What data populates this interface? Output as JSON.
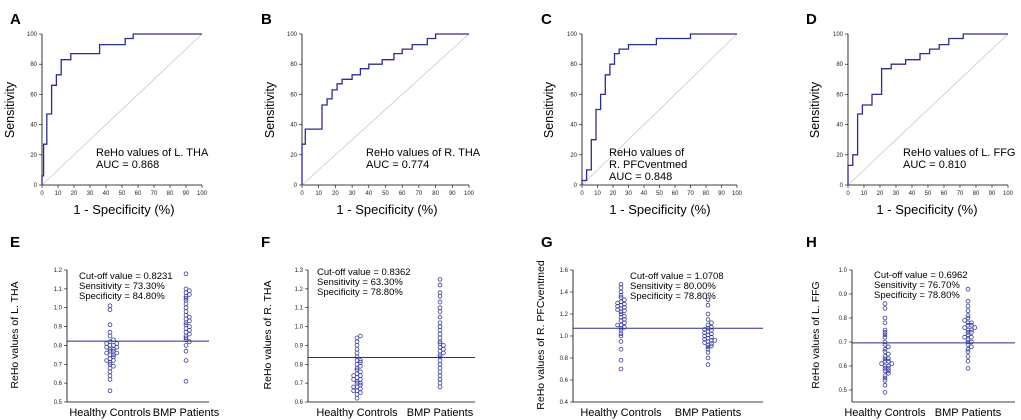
{
  "colors": {
    "line": "#2b2f8c",
    "diag": "#c8c8c8",
    "dot": "#3a3f9e"
  },
  "chart_data": [
    {
      "type": "line",
      "panel": "A",
      "title": "",
      "xlabel": "1 - Specificity (%)",
      "ylabel": "Sensitivity",
      "xlim": [
        0,
        100
      ],
      "ylim": [
        0,
        100
      ],
      "xticks": [
        0,
        10,
        20,
        30,
        40,
        50,
        60,
        70,
        80,
        90,
        100
      ],
      "yticks": [
        0,
        20,
        40,
        60,
        80,
        100
      ],
      "annotation": [
        "ReHo values of L. THA",
        "AUC = 0.868"
      ],
      "series": [
        {
          "name": "ROC",
          "x": [
            0,
            0,
            1,
            1,
            3,
            3,
            6,
            6,
            9,
            9,
            12,
            12,
            18,
            18,
            36,
            36,
            52,
            52,
            57,
            57,
            100
          ],
          "y": [
            0,
            6,
            6,
            27,
            27,
            47,
            47,
            66,
            66,
            73,
            73,
            83,
            83,
            87,
            87,
            93,
            93,
            97,
            97,
            100,
            100
          ]
        }
      ]
    },
    {
      "type": "line",
      "panel": "B",
      "title": "",
      "xlabel": "1 - Specificity (%)",
      "ylabel": "Sensitivity",
      "xlim": [
        0,
        100
      ],
      "ylim": [
        0,
        100
      ],
      "xticks": [
        0,
        10,
        20,
        30,
        40,
        50,
        60,
        70,
        80,
        90,
        100
      ],
      "yticks": [
        0,
        20,
        40,
        60,
        80,
        100
      ],
      "annotation": [
        "ReHo values of R. THA",
        "AUC = 0.774"
      ],
      "series": [
        {
          "name": "ROC",
          "x": [
            0,
            0,
            2,
            2,
            12,
            12,
            15,
            15,
            18,
            18,
            21,
            21,
            24,
            24,
            30,
            30,
            35,
            35,
            40,
            40,
            48,
            48,
            55,
            55,
            60,
            60,
            66,
            66,
            75,
            75,
            80,
            80,
            85,
            85,
            100
          ],
          "y": [
            0,
            27,
            27,
            37,
            37,
            53,
            53,
            57,
            57,
            63,
            63,
            67,
            67,
            70,
            70,
            73,
            73,
            77,
            77,
            80,
            80,
            83,
            83,
            87,
            87,
            90,
            90,
            93,
            93,
            97,
            97,
            100,
            100,
            100,
            100
          ]
        }
      ]
    },
    {
      "type": "line",
      "panel": "C",
      "title": "",
      "xlabel": "1 - Specificity (%)",
      "ylabel": "Sensitivity",
      "xlim": [
        0,
        100
      ],
      "ylim": [
        0,
        100
      ],
      "xticks": [
        0,
        10,
        20,
        30,
        40,
        50,
        60,
        70,
        80,
        90,
        100
      ],
      "yticks": [
        0,
        20,
        40,
        60,
        80,
        100
      ],
      "annotation": [
        "ReHo values of",
        "R. PFCventmed",
        "AUC = 0.848"
      ],
      "series": [
        {
          "name": "ROC",
          "x": [
            0,
            0,
            3,
            3,
            6,
            6,
            9,
            9,
            12,
            12,
            15,
            15,
            18,
            18,
            21,
            21,
            24,
            24,
            30,
            30,
            48,
            48,
            70,
            70,
            100
          ],
          "y": [
            0,
            3,
            3,
            10,
            10,
            30,
            30,
            50,
            50,
            60,
            60,
            73,
            73,
            80,
            80,
            87,
            87,
            90,
            90,
            93,
            93,
            97,
            97,
            100,
            100
          ]
        }
      ]
    },
    {
      "type": "line",
      "panel": "D",
      "title": "",
      "xlabel": "1 - Specificity (%)",
      "ylabel": "Sensitivity",
      "xlim": [
        0,
        100
      ],
      "ylim": [
        0,
        100
      ],
      "xticks": [
        0,
        10,
        20,
        30,
        40,
        50,
        60,
        70,
        80,
        90,
        100
      ],
      "yticks": [
        0,
        20,
        40,
        60,
        80,
        100
      ],
      "annotation": [
        "ReHo values of L. FFG",
        "AUC = 0.810"
      ],
      "series": [
        {
          "name": "ROC",
          "x": [
            0,
            0,
            3,
            3,
            6,
            6,
            9,
            9,
            15,
            15,
            21,
            21,
            27,
            27,
            36,
            36,
            45,
            45,
            51,
            51,
            57,
            57,
            63,
            63,
            72,
            72,
            81,
            81,
            100
          ],
          "y": [
            0,
            13,
            13,
            20,
            20,
            47,
            47,
            53,
            53,
            60,
            60,
            77,
            77,
            80,
            80,
            83,
            83,
            87,
            87,
            90,
            90,
            93,
            93,
            97,
            97,
            100,
            100,
            100,
            100
          ]
        }
      ]
    },
    {
      "type": "scatter",
      "panel": "E",
      "ylabel": "ReHo values of L. THA",
      "ylim": [
        0.5,
        1.2
      ],
      "yticks": [
        "0.5",
        "0.6",
        "0.7",
        "0.8",
        "0.9",
        "1.0",
        "1.1",
        "1.2"
      ],
      "categories": [
        "Healthy Controls",
        "BMP Patients"
      ],
      "cutoff": 0.8231,
      "annotation": [
        "Cut-off value = 0.8231",
        "Sensitivity = 73.30%",
        "Specificity = 84.80%"
      ],
      "series": [
        {
          "name": "Healthy Controls",
          "values": [
            0.56,
            0.62,
            0.64,
            0.66,
            0.68,
            0.69,
            0.7,
            0.71,
            0.72,
            0.72,
            0.73,
            0.74,
            0.75,
            0.75,
            0.76,
            0.76,
            0.77,
            0.77,
            0.78,
            0.78,
            0.79,
            0.79,
            0.8,
            0.8,
            0.81,
            0.81,
            0.82,
            0.83,
            0.85,
            0.87,
            0.91,
            0.99,
            1.01
          ]
        },
        {
          "name": "BMP Patients",
          "values": [
            0.61,
            0.72,
            0.77,
            0.8,
            0.83,
            0.84,
            0.85,
            0.86,
            0.87,
            0.88,
            0.89,
            0.9,
            0.91,
            0.92,
            0.93,
            0.94,
            0.95,
            0.96,
            0.98,
            1.0,
            1.02,
            1.04,
            1.05,
            1.06,
            1.07,
            1.08,
            1.09,
            1.1,
            1.18,
            0.82
          ]
        }
      ]
    },
    {
      "type": "scatter",
      "panel": "F",
      "ylabel": "ReHo values of R. THA",
      "ylim": [
        0.6,
        1.3
      ],
      "yticks": [
        "0.6",
        "0.7",
        "0.8",
        "0.9",
        "1.0",
        "1.1",
        "1.2",
        "1.3"
      ],
      "categories": [
        "Healthy Controls",
        "BMP Patients"
      ],
      "cutoff": 0.8362,
      "annotation": [
        "Cut-off value = 0.8362",
        "Sensitivity = 63.30%",
        "Specificity = 78.80%"
      ],
      "series": [
        {
          "name": "Healthy Controls",
          "values": [
            0.62,
            0.64,
            0.65,
            0.66,
            0.67,
            0.68,
            0.69,
            0.7,
            0.7,
            0.71,
            0.72,
            0.72,
            0.73,
            0.74,
            0.74,
            0.75,
            0.76,
            0.77,
            0.78,
            0.79,
            0.8,
            0.81,
            0.82,
            0.82,
            0.84,
            0.86,
            0.88,
            0.9,
            0.92,
            0.94,
            0.95,
            0.66,
            0.68
          ]
        },
        {
          "name": "BMP Patients",
          "values": [
            0.68,
            0.7,
            0.72,
            0.74,
            0.76,
            0.78,
            0.8,
            0.82,
            0.84,
            0.85,
            0.86,
            0.87,
            0.88,
            0.89,
            0.9,
            0.91,
            0.92,
            0.94,
            0.96,
            0.98,
            1.0,
            1.02,
            1.05,
            1.08,
            1.1,
            1.13,
            1.16,
            1.18,
            1.22,
            1.25
          ]
        }
      ]
    },
    {
      "type": "scatter",
      "panel": "G",
      "ylabel": "ReHo values of R. PFCventmed",
      "ylim": [
        0.4,
        1.6
      ],
      "yticks": [
        "0.4",
        "0.6",
        "0.8",
        "1.0",
        "1.2",
        "1.4",
        "1.6"
      ],
      "categories": [
        "Healthy Controls",
        "BMP Patients"
      ],
      "cutoff": 1.0708,
      "annotation": [
        "Cut-off value = 1.0708",
        "Sensitivity = 80.00%",
        "Specificity = 78.80%"
      ],
      "series": [
        {
          "name": "Healthy Controls",
          "values": [
            0.7,
            0.78,
            0.88,
            0.95,
            1.0,
            1.02,
            1.05,
            1.07,
            1.08,
            1.1,
            1.12,
            1.14,
            1.15,
            1.17,
            1.18,
            1.2,
            1.22,
            1.23,
            1.24,
            1.25,
            1.26,
            1.27,
            1.28,
            1.29,
            1.3,
            1.31,
            1.33,
            1.35,
            1.37,
            1.4,
            1.44,
            1.47,
            1.1
          ]
        },
        {
          "name": "BMP Patients",
          "values": [
            0.74,
            0.8,
            0.85,
            0.88,
            0.9,
            0.91,
            0.92,
            0.93,
            0.94,
            0.95,
            0.96,
            0.97,
            0.98,
            0.99,
            1.0,
            1.01,
            1.02,
            1.03,
            1.04,
            1.05,
            1.06,
            1.07,
            1.08,
            1.1,
            1.12,
            1.15,
            1.2,
            1.28,
            1.33,
            0.96
          ]
        }
      ]
    },
    {
      "type": "scatter",
      "panel": "H",
      "ylabel": "ReHo values of L. FFG",
      "ylim": [
        0.45,
        1.0
      ],
      "yticks": [
        "0.5",
        "0.6",
        "0.7",
        "0.8",
        "0.9",
        "1.0"
      ],
      "categories": [
        "Healthy Controls",
        "BMP Patients"
      ],
      "cutoff": 0.6962,
      "annotation": [
        "Cut-off value = 0.6962",
        "Sensitivity = 76.70%",
        "Specificity = 78.80%"
      ],
      "series": [
        {
          "name": "Healthy Controls",
          "values": [
            0.49,
            0.52,
            0.54,
            0.55,
            0.56,
            0.57,
            0.58,
            0.58,
            0.59,
            0.6,
            0.6,
            0.61,
            0.61,
            0.62,
            0.62,
            0.63,
            0.64,
            0.65,
            0.66,
            0.67,
            0.68,
            0.69,
            0.7,
            0.72,
            0.73,
            0.74,
            0.75,
            0.78,
            0.8,
            0.84,
            0.86,
            0.59,
            0.63
          ]
        },
        {
          "name": "BMP Patients",
          "values": [
            0.59,
            0.62,
            0.64,
            0.66,
            0.67,
            0.68,
            0.69,
            0.7,
            0.71,
            0.72,
            0.72,
            0.73,
            0.74,
            0.74,
            0.75,
            0.75,
            0.76,
            0.76,
            0.77,
            0.77,
            0.78,
            0.78,
            0.79,
            0.8,
            0.81,
            0.83,
            0.85,
            0.87,
            0.92,
            0.7
          ]
        }
      ]
    }
  ]
}
